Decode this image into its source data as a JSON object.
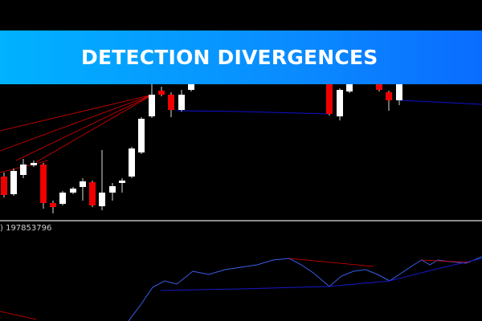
{
  "banner": {
    "title": "DETECTION DIVERGENCES"
  },
  "indicator": {
    "label": ") 197853796"
  }
}
